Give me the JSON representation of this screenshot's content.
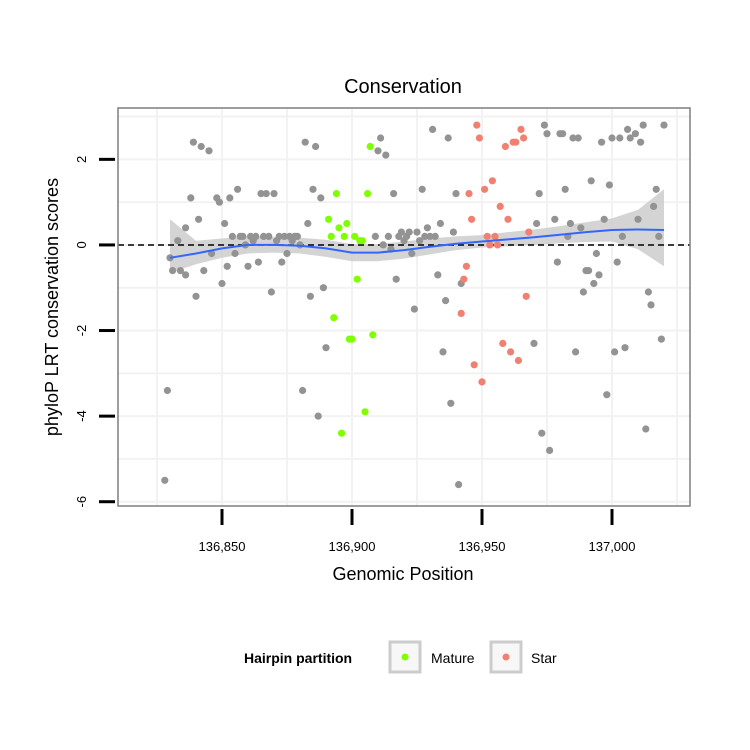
{
  "chart_data": {
    "type": "scatter",
    "title": "Conservation",
    "xlabel": "Genomic Position",
    "ylabel": "phyloP LRT conservation scores",
    "xlim": [
      136810,
      137030
    ],
    "ylim": [
      -6.1,
      3.2
    ],
    "xticks": [
      {
        "value": 136850,
        "label": "136,850"
      },
      {
        "value": 136900,
        "label": "136,900"
      },
      {
        "value": 136950,
        "label": "136,950"
      },
      {
        "value": 137000,
        "label": "137,000"
      }
    ],
    "yticks": [
      {
        "value": -6,
        "label": "-6"
      },
      {
        "value": -4,
        "label": "-4"
      },
      {
        "value": -2,
        "label": "-2"
      },
      {
        "value": 0,
        "label": "0"
      },
      {
        "value": 2,
        "label": "2"
      }
    ],
    "reference_line": {
      "y": 0,
      "style": "dashed",
      "color": "#000000"
    },
    "legend": {
      "title": "Hairpin partition",
      "position": "bottom",
      "entries": [
        {
          "label": "Mature",
          "color": "#7fff00"
        },
        {
          "label": "Star",
          "color": "#f08070"
        }
      ]
    },
    "colors": {
      "other": "#939393",
      "mature": "#7fff00",
      "star": "#f08070",
      "smooth": "#3366ff",
      "band": "#cccccc",
      "panel_border": "#7f7f7f",
      "grid": "#f2f2f2"
    },
    "series": [
      {
        "name": "Other",
        "color": "#939393",
        "points": [
          [
            136828,
            -5.5
          ],
          [
            136829,
            -3.4
          ],
          [
            136830,
            -0.3
          ],
          [
            136831,
            -0.6
          ],
          [
            136833,
            0.1
          ],
          [
            136834,
            -0.6
          ],
          [
            136836,
            -0.7
          ],
          [
            136836,
            0.4
          ],
          [
            136838,
            1.1
          ],
          [
            136839,
            2.4
          ],
          [
            136840,
            -1.2
          ],
          [
            136841,
            0.6
          ],
          [
            136842,
            2.3
          ],
          [
            136843,
            -0.6
          ],
          [
            136845,
            2.2
          ],
          [
            136846,
            -0.2
          ],
          [
            136848,
            1.1
          ],
          [
            136849,
            1.0
          ],
          [
            136850,
            -0.9
          ],
          [
            136851,
            0.5
          ],
          [
            136852,
            -0.5
          ],
          [
            136853,
            1.1
          ],
          [
            136854,
            0.2
          ],
          [
            136855,
            -0.2
          ],
          [
            136856,
            1.3
          ],
          [
            136857,
            0.2
          ],
          [
            136858,
            0.2
          ],
          [
            136859,
            0.0
          ],
          [
            136860,
            -0.5
          ],
          [
            136861,
            0.2
          ],
          [
            136862,
            0.1
          ],
          [
            136863,
            0.2
          ],
          [
            136864,
            -0.4
          ],
          [
            136865,
            1.2
          ],
          [
            136866,
            0.2
          ],
          [
            136867,
            1.2
          ],
          [
            136868,
            0.2
          ],
          [
            136869,
            -1.1
          ],
          [
            136870,
            1.2
          ],
          [
            136871,
            0.1
          ],
          [
            136872,
            0.2
          ],
          [
            136873,
            -0.4
          ],
          [
            136874,
            0.2
          ],
          [
            136875,
            -0.2
          ],
          [
            136876,
            0.2
          ],
          [
            136877,
            0.1
          ],
          [
            136878,
            0.2
          ],
          [
            136879,
            0.2
          ],
          [
            136880,
            0.0
          ],
          [
            136881,
            -3.4
          ],
          [
            136882,
            2.4
          ],
          [
            136883,
            0.5
          ],
          [
            136884,
            -1.2
          ],
          [
            136885,
            1.3
          ],
          [
            136886,
            2.3
          ],
          [
            136887,
            -4.0
          ],
          [
            136888,
            1.1
          ],
          [
            136889,
            -1.0
          ],
          [
            136890,
            -2.4
          ],
          [
            136909,
            0.2
          ],
          [
            136910,
            2.2
          ],
          [
            136911,
            2.5
          ],
          [
            136912,
            0.0
          ],
          [
            136913,
            2.1
          ],
          [
            136914,
            0.2
          ],
          [
            136915,
            -0.1
          ],
          [
            136916,
            1.2
          ],
          [
            136917,
            -0.8
          ],
          [
            136918,
            0.2
          ],
          [
            136919,
            0.3
          ],
          [
            136920,
            0.1
          ],
          [
            136921,
            0.2
          ],
          [
            136922,
            0.3
          ],
          [
            136923,
            -0.2
          ],
          [
            136924,
            -1.5
          ],
          [
            136925,
            0.3
          ],
          [
            136926,
            0.1
          ],
          [
            136927,
            1.3
          ],
          [
            136928,
            0.2
          ],
          [
            136929,
            0.4
          ],
          [
            136930,
            0.2
          ],
          [
            136931,
            2.7
          ],
          [
            136932,
            0.2
          ],
          [
            136933,
            -0.7
          ],
          [
            136934,
            0.5
          ],
          [
            136935,
            -2.5
          ],
          [
            136936,
            -1.3
          ],
          [
            136937,
            2.5
          ],
          [
            136938,
            -3.7
          ],
          [
            136939,
            0.3
          ],
          [
            136940,
            1.2
          ],
          [
            136941,
            -5.6
          ],
          [
            136942,
            -0.9
          ],
          [
            136970,
            -2.3
          ],
          [
            136971,
            0.5
          ],
          [
            136972,
            1.2
          ],
          [
            136973,
            -4.4
          ],
          [
            136974,
            2.8
          ],
          [
            136975,
            2.6
          ],
          [
            136976,
            -4.8
          ],
          [
            136978,
            0.6
          ],
          [
            136979,
            -0.4
          ],
          [
            136980,
            2.6
          ],
          [
            136981,
            2.6
          ],
          [
            136982,
            1.3
          ],
          [
            136983,
            0.2
          ],
          [
            136984,
            0.5
          ],
          [
            136985,
            2.5
          ],
          [
            136986,
            -2.5
          ],
          [
            136987,
            2.5
          ],
          [
            136988,
            0.4
          ],
          [
            136989,
            -1.1
          ],
          [
            136990,
            -0.6
          ],
          [
            136991,
            -0.6
          ],
          [
            136992,
            1.5
          ],
          [
            136993,
            -0.9
          ],
          [
            136994,
            -0.2
          ],
          [
            136995,
            -0.7
          ],
          [
            136996,
            2.4
          ],
          [
            136997,
            0.6
          ],
          [
            136998,
            -3.5
          ],
          [
            136999,
            1.4
          ],
          [
            137000,
            2.5
          ],
          [
            137001,
            -2.5
          ],
          [
            137002,
            -0.4
          ],
          [
            137003,
            2.5
          ],
          [
            137004,
            0.2
          ],
          [
            137005,
            -2.4
          ],
          [
            137006,
            2.7
          ],
          [
            137007,
            2.5
          ],
          [
            137009,
            2.6
          ],
          [
            137010,
            0.6
          ],
          [
            137011,
            2.4
          ],
          [
            137012,
            2.8
          ],
          [
            137013,
            -4.3
          ],
          [
            137014,
            -1.1
          ],
          [
            137015,
            -1.4
          ],
          [
            137016,
            0.9
          ],
          [
            137017,
            1.3
          ],
          [
            137018,
            0.2
          ],
          [
            137019,
            -2.2
          ],
          [
            137020,
            2.8
          ]
        ]
      },
      {
        "name": "Mature",
        "color": "#7fff00",
        "points": [
          [
            136891,
            0.6
          ],
          [
            136892,
            0.2
          ],
          [
            136893,
            -1.7
          ],
          [
            136894,
            1.2
          ],
          [
            136895,
            0.4
          ],
          [
            136896,
            -4.4
          ],
          [
            136897,
            0.2
          ],
          [
            136898,
            0.5
          ],
          [
            136899,
            -2.2
          ],
          [
            136900,
            -2.2
          ],
          [
            136901,
            0.2
          ],
          [
            136902,
            -0.8
          ],
          [
            136903,
            0.1
          ],
          [
            136904,
            0.1
          ],
          [
            136905,
            -3.9
          ],
          [
            136906,
            1.2
          ],
          [
            136907,
            2.3
          ],
          [
            136908,
            -2.1
          ]
        ]
      },
      {
        "name": "Star",
        "color": "#f08070",
        "points": [
          [
            136942,
            -1.6
          ],
          [
            136943,
            -0.8
          ],
          [
            136944,
            -0.5
          ],
          [
            136945,
            1.2
          ],
          [
            136946,
            0.6
          ],
          [
            136947,
            -2.8
          ],
          [
            136948,
            2.8
          ],
          [
            136949,
            2.5
          ],
          [
            136950,
            -3.2
          ],
          [
            136951,
            1.3
          ],
          [
            136952,
            0.2
          ],
          [
            136953,
            0.0
          ],
          [
            136954,
            1.5
          ],
          [
            136955,
            0.2
          ],
          [
            136956,
            0.0
          ],
          [
            136957,
            0.9
          ],
          [
            136958,
            -2.3
          ],
          [
            136959,
            2.3
          ],
          [
            136960,
            0.6
          ],
          [
            136961,
            -2.5
          ],
          [
            136962,
            2.4
          ],
          [
            136963,
            2.4
          ],
          [
            136964,
            -2.7
          ],
          [
            136965,
            2.7
          ],
          [
            136966,
            2.5
          ],
          [
            136967,
            -1.2
          ],
          [
            136968,
            0.3
          ]
        ]
      }
    ],
    "smooth": {
      "x": [
        136830,
        136840,
        136850,
        136860,
        136870,
        136880,
        136890,
        136900,
        136910,
        136920,
        136930,
        136940,
        136950,
        136960,
        136970,
        136980,
        136990,
        137000,
        137010,
        137020
      ],
      "y": [
        -0.3,
        -0.2,
        -0.08,
        0.0,
        0.0,
        -0.02,
        -0.08,
        -0.18,
        -0.18,
        -0.12,
        -0.04,
        0.03,
        0.08,
        0.13,
        0.18,
        0.24,
        0.3,
        0.35,
        0.36,
        0.35
      ],
      "lower": [
        -0.65,
        -0.45,
        -0.3,
        -0.2,
        -0.18,
        -0.2,
        -0.28,
        -0.38,
        -0.38,
        -0.32,
        -0.22,
        -0.12,
        -0.06,
        -0.03,
        0.0,
        0.04,
        0.07,
        0.08,
        -0.1,
        -0.5
      ],
      "upper": [
        0.6,
        0.1,
        0.15,
        0.2,
        0.18,
        0.17,
        0.12,
        0.02,
        0.02,
        0.08,
        0.15,
        0.2,
        0.23,
        0.3,
        0.36,
        0.44,
        0.53,
        0.62,
        0.82,
        1.3
      ]
    }
  }
}
